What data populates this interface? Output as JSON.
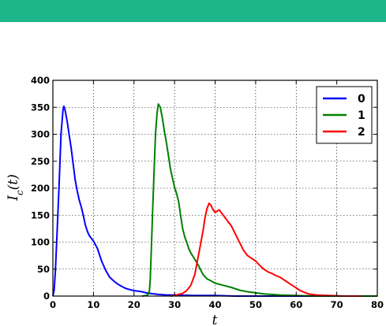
{
  "header": {
    "bar_color": "#1db58a"
  },
  "chart_data": {
    "type": "line",
    "title": "",
    "xlabel": "t",
    "ylabel": "I_c(t)",
    "xlim": [
      0,
      80
    ],
    "ylim": [
      0,
      400
    ],
    "xticks": [
      "0",
      "10",
      "20",
      "30",
      "40",
      "50",
      "60",
      "70",
      "80"
    ],
    "yticks": [
      "0",
      "50",
      "100",
      "150",
      "200",
      "250",
      "300",
      "350",
      "400"
    ],
    "grid": true,
    "legend_position": "top-right",
    "series": [
      {
        "name": "0",
        "color": "#0000ff",
        "points": [
          [
            0,
            0
          ],
          [
            0.3,
            10
          ],
          [
            0.6,
            45
          ],
          [
            1,
            110
          ],
          [
            1.5,
            200
          ],
          [
            2,
            300
          ],
          [
            2.5,
            345
          ],
          [
            2.7,
            352
          ],
          [
            3,
            345
          ],
          [
            3.5,
            325
          ],
          [
            4,
            300
          ],
          [
            4.5,
            275
          ],
          [
            5,
            245
          ],
          [
            5.5,
            215
          ],
          [
            6,
            195
          ],
          [
            6.5,
            178
          ],
          [
            7,
            165
          ],
          [
            7.5,
            150
          ],
          [
            8,
            132
          ],
          [
            8.5,
            120
          ],
          [
            9,
            112
          ],
          [
            10,
            102
          ],
          [
            11,
            88
          ],
          [
            12,
            65
          ],
          [
            13,
            48
          ],
          [
            14,
            35
          ],
          [
            15,
            28
          ],
          [
            16,
            22
          ],
          [
            17,
            18
          ],
          [
            18,
            14
          ],
          [
            19,
            12
          ],
          [
            20,
            10
          ],
          [
            21,
            9
          ],
          [
            22,
            8
          ],
          [
            23,
            6
          ],
          [
            24,
            5
          ],
          [
            25,
            4
          ],
          [
            26,
            3
          ],
          [
            28,
            2
          ],
          [
            30,
            2
          ],
          [
            35,
            1
          ],
          [
            40,
            1
          ],
          [
            45,
            0
          ],
          [
            80,
            0
          ]
        ]
      },
      {
        "name": "1",
        "color": "#008000",
        "points": [
          [
            22,
            0
          ],
          [
            23,
            1
          ],
          [
            23.5,
            3
          ],
          [
            23.8,
            10
          ],
          [
            24,
            30
          ],
          [
            24.3,
            90
          ],
          [
            24.6,
            160
          ],
          [
            25,
            240
          ],
          [
            25.3,
            300
          ],
          [
            25.7,
            340
          ],
          [
            26,
            356
          ],
          [
            26.5,
            350
          ],
          [
            27,
            330
          ],
          [
            27.5,
            305
          ],
          [
            28,
            285
          ],
          [
            28.5,
            260
          ],
          [
            29,
            235
          ],
          [
            29.5,
            218
          ],
          [
            30,
            202
          ],
          [
            30.5,
            190
          ],
          [
            31,
            175
          ],
          [
            31.5,
            150
          ],
          [
            32,
            125
          ],
          [
            32.5,
            110
          ],
          [
            33,
            100
          ],
          [
            33.5,
            88
          ],
          [
            34,
            80
          ],
          [
            35,
            68
          ],
          [
            36,
            55
          ],
          [
            37,
            40
          ],
          [
            38,
            32
          ],
          [
            39,
            28
          ],
          [
            40,
            24
          ],
          [
            42,
            20
          ],
          [
            44,
            16
          ],
          [
            46,
            11
          ],
          [
            48,
            8
          ],
          [
            50,
            6
          ],
          [
            52,
            4
          ],
          [
            54,
            3
          ],
          [
            56,
            2
          ],
          [
            60,
            1
          ],
          [
            65,
            0
          ],
          [
            80,
            0
          ]
        ]
      },
      {
        "name": "2",
        "color": "#ff0000",
        "points": [
          [
            29,
            0
          ],
          [
            30,
            1
          ],
          [
            31,
            3
          ],
          [
            32,
            5
          ],
          [
            33,
            10
          ],
          [
            34,
            20
          ],
          [
            35,
            40
          ],
          [
            36,
            80
          ],
          [
            37,
            120
          ],
          [
            37.5,
            145
          ],
          [
            38,
            162
          ],
          [
            38.5,
            172
          ],
          [
            39,
            168
          ],
          [
            39.5,
            160
          ],
          [
            40,
            155
          ],
          [
            41,
            160
          ],
          [
            42,
            150
          ],
          [
            43,
            140
          ],
          [
            44,
            130
          ],
          [
            45,
            115
          ],
          [
            46,
            100
          ],
          [
            47,
            85
          ],
          [
            48,
            75
          ],
          [
            49,
            70
          ],
          [
            50,
            65
          ],
          [
            51,
            57
          ],
          [
            52,
            50
          ],
          [
            53,
            45
          ],
          [
            54,
            42
          ],
          [
            55,
            38
          ],
          [
            56,
            35
          ],
          [
            57,
            30
          ],
          [
            58,
            25
          ],
          [
            59,
            20
          ],
          [
            60,
            15
          ],
          [
            61,
            10
          ],
          [
            62,
            7
          ],
          [
            63,
            4
          ],
          [
            65,
            2
          ],
          [
            68,
            1
          ],
          [
            72,
            0
          ],
          [
            76,
            0
          ]
        ]
      }
    ]
  }
}
